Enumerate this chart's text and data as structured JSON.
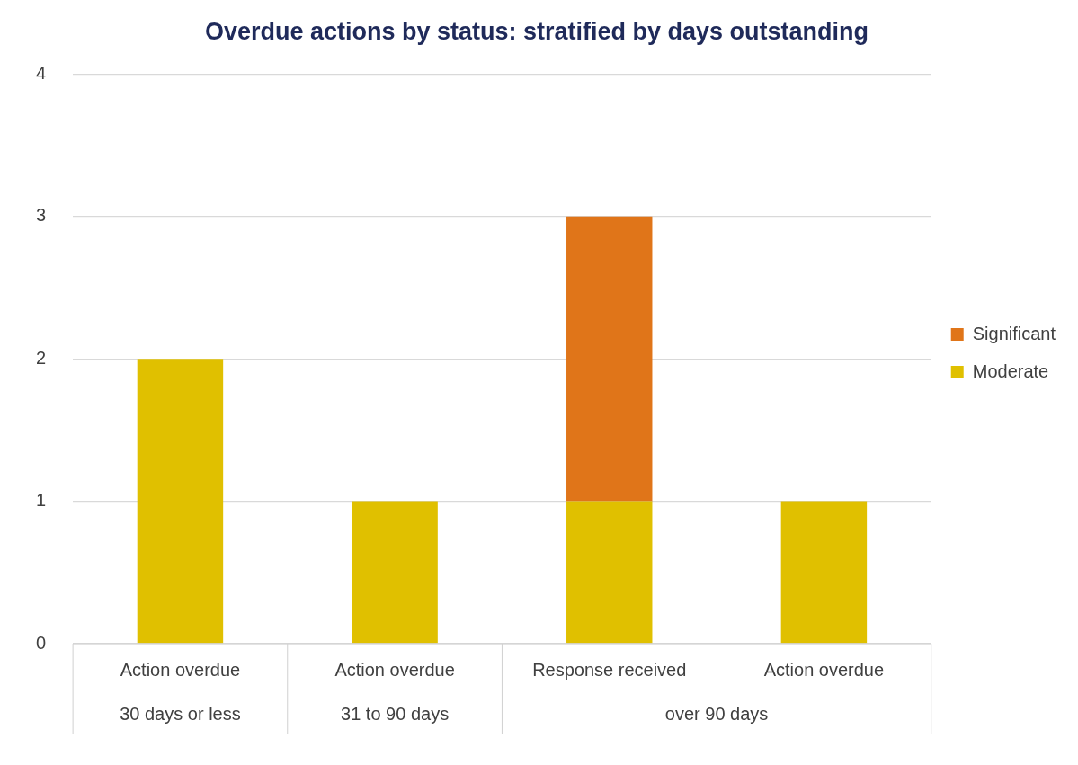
{
  "chart_data": {
    "type": "bar",
    "title": "Overdue actions by status: stratified by days outstanding",
    "categories": [
      "Action overdue",
      "Action overdue",
      "Response received",
      "Action overdue"
    ],
    "series": [
      {
        "name": "Moderate",
        "color": "#e0c000",
        "values": [
          2,
          1,
          1,
          1
        ]
      },
      {
        "name": "Significant",
        "color": "#e07519",
        "values": [
          null,
          null,
          2,
          null
        ]
      }
    ],
    "stacked": true,
    "ylim": [
      0,
      4
    ],
    "yticks": [
      0,
      1,
      2,
      3,
      4
    ],
    "grid": "y",
    "legend": "right",
    "annotations": [
      "30 days or less",
      "31 to 90 days",
      "over 90 days"
    ]
  }
}
